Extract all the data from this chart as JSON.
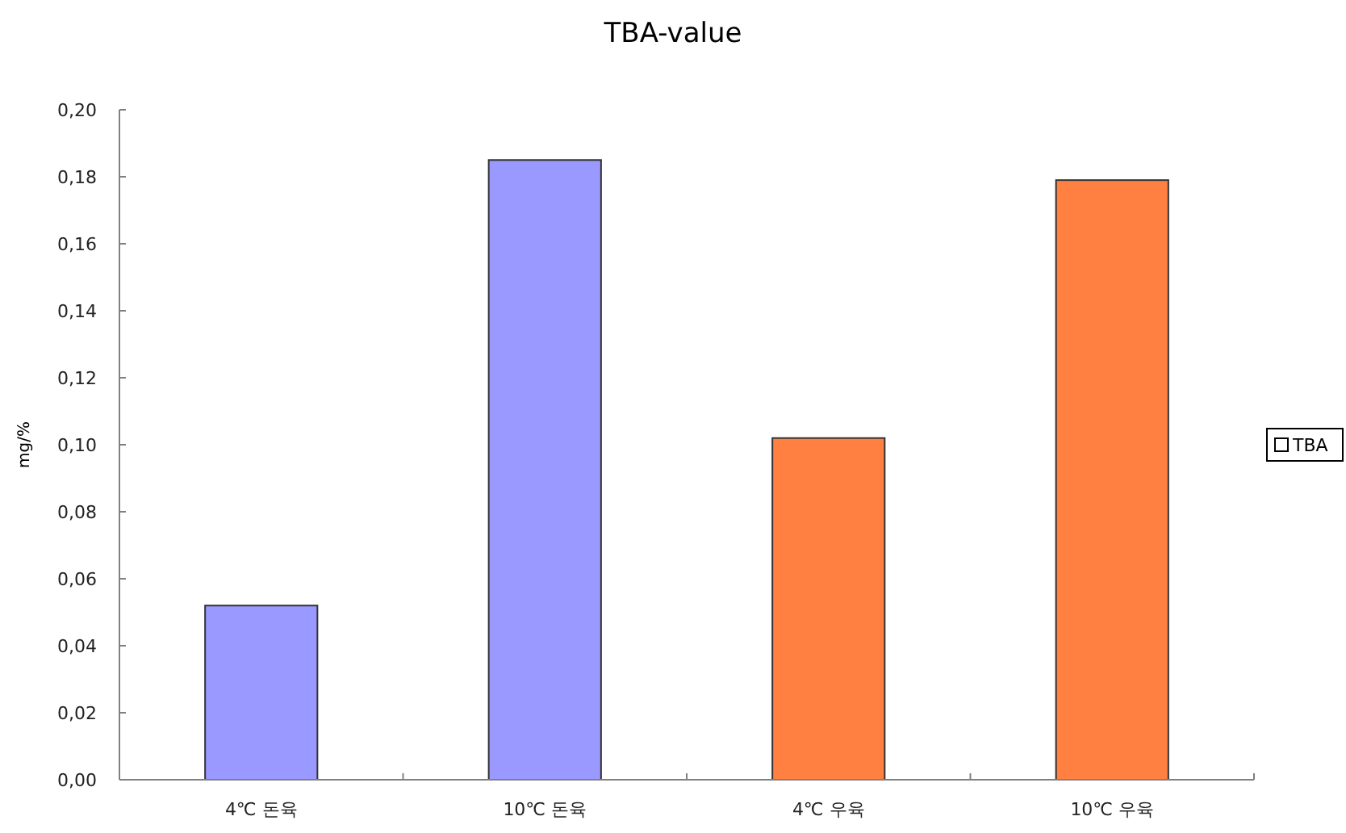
{
  "chart_data": {
    "type": "bar",
    "title": "TBA-value",
    "ylabel": "mg/%",
    "categories": [
      "4℃ 돈육",
      "10℃ 돈육",
      "4℃ 우육",
      "10℃ 우육"
    ],
    "series": [
      {
        "name": "TBA",
        "color": "#ffffff",
        "colors": [
          "#9999ff",
          "#9999ff",
          "#ff8040",
          "#ff8040"
        ],
        "values": [
          0.052,
          0.185,
          0.102,
          0.179
        ]
      }
    ],
    "ylim": [
      0,
      0.2
    ],
    "yticks": [
      {
        "value": 0,
        "label": "0,00"
      },
      {
        "value": 0.02,
        "label": "0,02"
      },
      {
        "value": 0.04,
        "label": "0,04"
      },
      {
        "value": 0.06,
        "label": "0,06"
      },
      {
        "value": 0.08,
        "label": "0,08"
      },
      {
        "value": 0.1,
        "label": "0,10"
      },
      {
        "value": 0.12,
        "label": "0,12"
      },
      {
        "value": 0.14,
        "label": "0,14"
      },
      {
        "value": 0.16,
        "label": "0,16"
      },
      {
        "value": 0.18,
        "label": "0,18"
      },
      {
        "value": 0.2,
        "label": "0,20"
      }
    ],
    "legend": "right"
  }
}
